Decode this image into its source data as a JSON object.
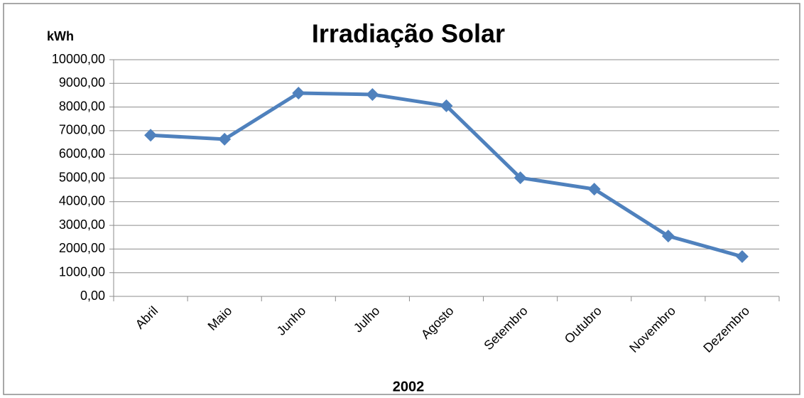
{
  "chart_data": {
    "type": "line",
    "title": "Irradiação Solar",
    "y_label": "kWh",
    "x_label": "2002",
    "categories": [
      "Abril",
      "Maio",
      "Junho",
      "Julho",
      "Agosto",
      "Setembro",
      "Outubro",
      "Novembro",
      "Dezembro"
    ],
    "values": [
      6810,
      6640,
      8590,
      8530,
      8050,
      5010,
      4530,
      2550,
      1680
    ],
    "color": "#4f81bd",
    "ylim": [
      0,
      10000
    ],
    "yticks": [
      {
        "value": 0,
        "label": "0,00"
      },
      {
        "value": 1000,
        "label": "1000,00"
      },
      {
        "value": 2000,
        "label": "2000,00"
      },
      {
        "value": 3000,
        "label": "3000,00"
      },
      {
        "value": 4000,
        "label": "4000,00"
      },
      {
        "value": 5000,
        "label": "5000,00"
      },
      {
        "value": 6000,
        "label": "6000,00"
      },
      {
        "value": 7000,
        "label": "7000,00"
      },
      {
        "value": 8000,
        "label": "8000,00"
      },
      {
        "value": 9000,
        "label": "9000,00"
      },
      {
        "value": 10000,
        "label": "10000,00"
      }
    ],
    "grid": true
  }
}
